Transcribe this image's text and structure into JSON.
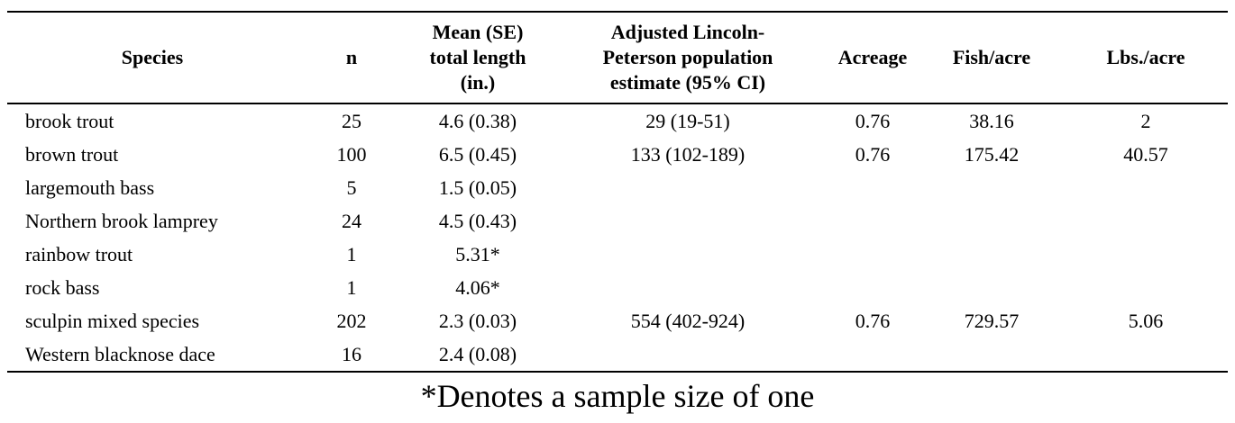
{
  "table": {
    "columns": [
      "Species",
      "n",
      "Mean (SE)\ntotal length\n(in.)",
      "Adjusted Lincoln-\nPeterson population\nestimate (95% CI)",
      "Acreage",
      "Fish/acre",
      "Lbs./acre"
    ],
    "rows": [
      [
        "brook trout",
        "25",
        "4.6 (0.38)",
        "29 (19-51)",
        "0.76",
        "38.16",
        "2"
      ],
      [
        "brown trout",
        "100",
        "6.5 (0.45)",
        "133 (102-189)",
        "0.76",
        "175.42",
        "40.57"
      ],
      [
        "largemouth bass",
        "5",
        "1.5 (0.05)",
        "",
        "",
        "",
        ""
      ],
      [
        "Northern brook lamprey",
        "24",
        "4.5 (0.43)",
        "",
        "",
        "",
        ""
      ],
      [
        "rainbow trout",
        "1",
        "5.31*",
        "",
        "",
        "",
        ""
      ],
      [
        "rock bass",
        "1",
        "4.06*",
        "",
        "",
        "",
        ""
      ],
      [
        "sculpin mixed species",
        "202",
        "2.3 (0.03)",
        "554 (402-924)",
        "0.76",
        "729.57",
        "5.06"
      ],
      [
        "Western blacknose dace",
        "16",
        "2.4 (0.08)",
        "",
        "",
        "",
        ""
      ]
    ]
  },
  "footnote": "*Denotes a sample size of one",
  "colors": {
    "text": "#000000",
    "background": "#ffffff",
    "rule": "#000000"
  }
}
